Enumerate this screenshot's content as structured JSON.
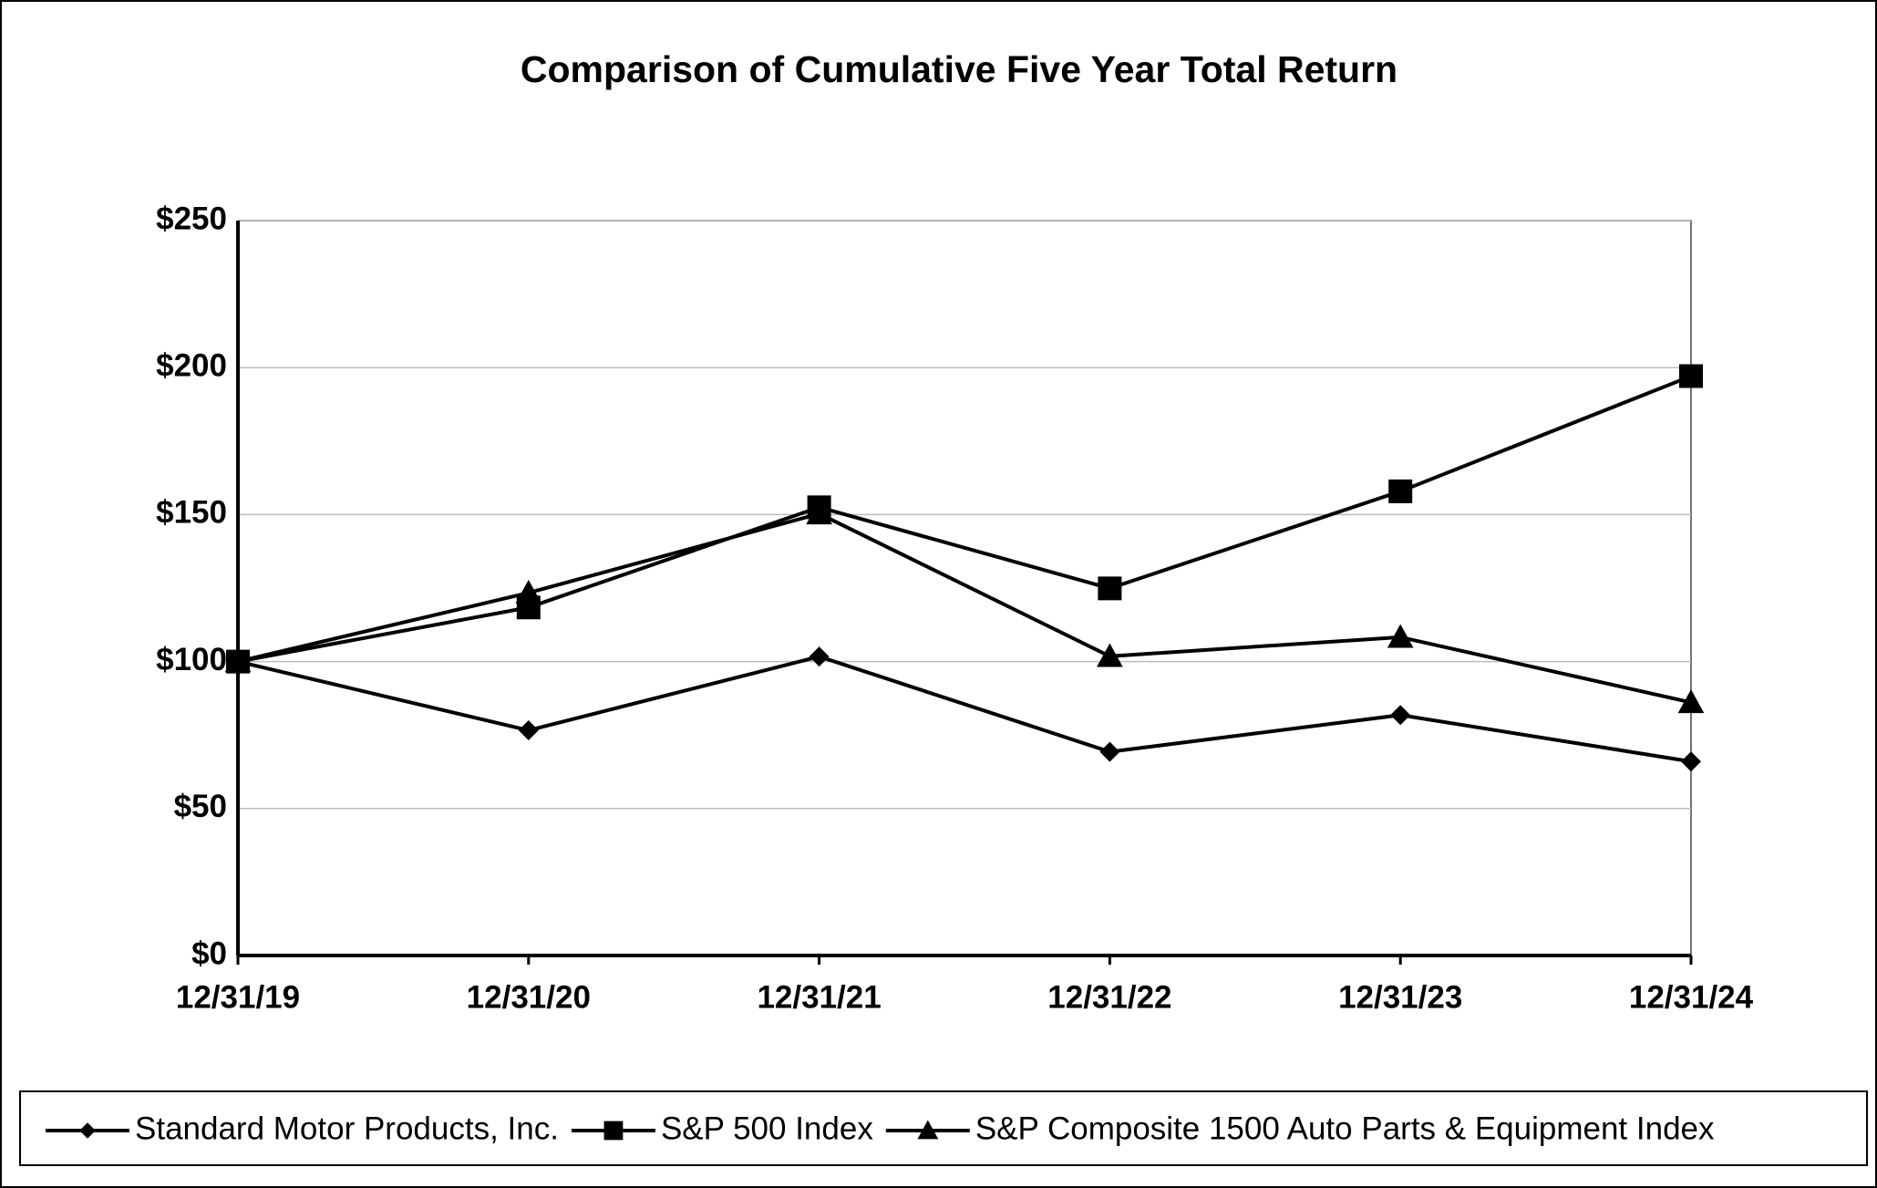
{
  "chart_data": {
    "type": "line",
    "title": "Comparison of Cumulative Five Year Total Return",
    "categories": [
      "12/31/19",
      "12/31/20",
      "12/31/21",
      "12/31/22",
      "12/31/23",
      "12/31/24"
    ],
    "series": [
      {
        "name": "Standard Motor Products, Inc.",
        "color": "#000000",
        "marker": "diamond",
        "values": [
          100,
          76.6,
          101.7,
          69.3,
          81.8,
          66
        ]
      },
      {
        "name": "S&P 500 Index",
        "color": "#000000",
        "marker": "square",
        "values": [
          100,
          118.4,
          152.5,
          124.9,
          157.9,
          197.1
        ]
      },
      {
        "name": "S&P Composite 1500 Auto Parts & Equipment Index",
        "color": "#000000",
        "marker": "triangle",
        "values": [
          100,
          123.4,
          150.3,
          101.8,
          108.3,
          86.1
        ]
      }
    ],
    "ylim": [
      0,
      250
    ],
    "yticks": [
      {
        "value": 0,
        "label": "$0"
      },
      {
        "value": 50,
        "label": "$50"
      },
      {
        "value": 100,
        "label": "$100"
      },
      {
        "value": 150,
        "label": "$150"
      },
      {
        "value": 200,
        "label": "$200"
      },
      {
        "value": 250,
        "label": "$250"
      }
    ],
    "grid": true,
    "legend": "bottom"
  }
}
